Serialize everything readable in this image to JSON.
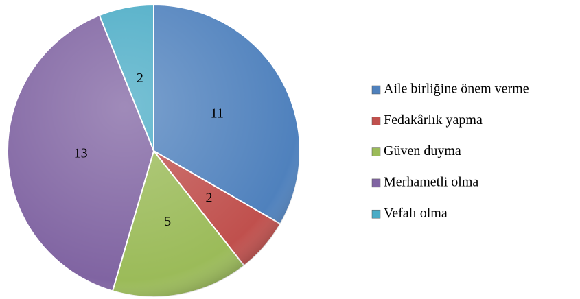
{
  "chart_data": {
    "type": "pie",
    "categories": [
      "Aile birliğine önem verme",
      "Fedakârlık yapma",
      "Güven duyma",
      "Merhametli olma",
      "Vefalı olma"
    ],
    "values": [
      11,
      2,
      5,
      13,
      2
    ],
    "colors": [
      "#4f81bd",
      "#c0504d",
      "#9bbb59",
      "#8064a2",
      "#4bacc6"
    ],
    "legend": "right"
  }
}
